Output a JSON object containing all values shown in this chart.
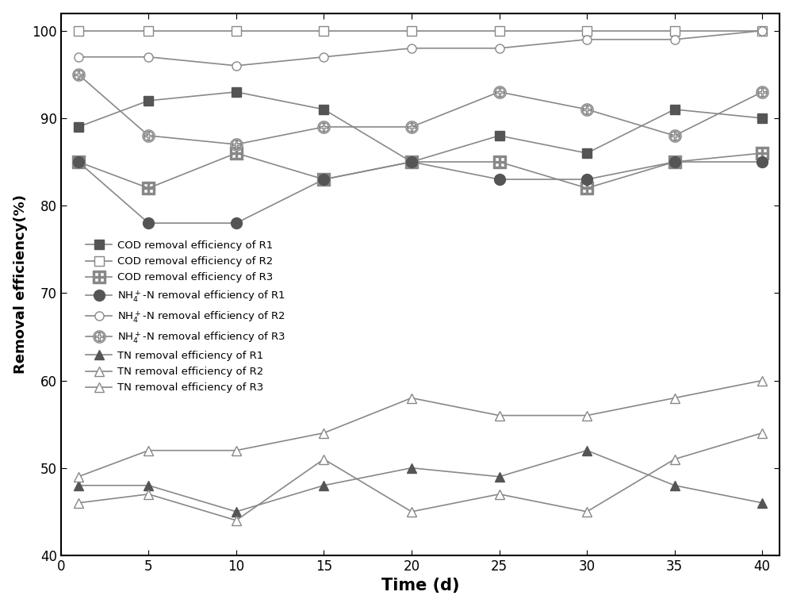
{
  "x": [
    1,
    5,
    10,
    15,
    20,
    25,
    30,
    35,
    40
  ],
  "COD_R1": [
    89,
    92,
    93,
    91,
    85,
    88,
    86,
    91,
    90
  ],
  "COD_R2": [
    100,
    100,
    100,
    100,
    100,
    100,
    100,
    100,
    100
  ],
  "COD_R3": [
    85,
    82,
    86,
    83,
    85,
    85,
    82,
    85,
    86
  ],
  "NH4_R1": [
    85,
    78,
    78,
    83,
    85,
    83,
    83,
    85,
    85
  ],
  "NH4_R2": [
    97,
    97,
    96,
    97,
    98,
    98,
    99,
    99,
    100
  ],
  "NH4_R3": [
    95,
    88,
    87,
    89,
    89,
    93,
    91,
    88,
    93
  ],
  "TN_R1": [
    48,
    48,
    45,
    48,
    50,
    49,
    52,
    48,
    46
  ],
  "TN_R2": [
    49,
    52,
    52,
    54,
    58,
    56,
    56,
    58,
    60
  ],
  "TN_R3": [
    46,
    47,
    44,
    51,
    45,
    47,
    45,
    51,
    54
  ],
  "ylabel": "Removal efficiency(%)",
  "xlabel": "Time (d)",
  "ylim": [
    40,
    102
  ],
  "xlim": [
    0,
    41
  ],
  "yticks": [
    40,
    50,
    60,
    70,
    80,
    90,
    100
  ],
  "xticks": [
    0,
    5,
    10,
    15,
    20,
    25,
    30,
    35,
    40
  ],
  "gray_color": "#888888",
  "dark_color": "#555555",
  "background_color": "#ffffff",
  "legend_labels": [
    "COD removal efficiency of R1",
    "COD removal efficiency of R2",
    "COD removal efficiency of R3",
    "NH4+-N removal efficiency of R1",
    "NH4+-N removal efficiency of R2",
    "NH4+-N removal efficiency of R3",
    "TN removal efficiency of R1",
    "TN removal efficiency of R2",
    "TN removal efficiency of R3"
  ]
}
